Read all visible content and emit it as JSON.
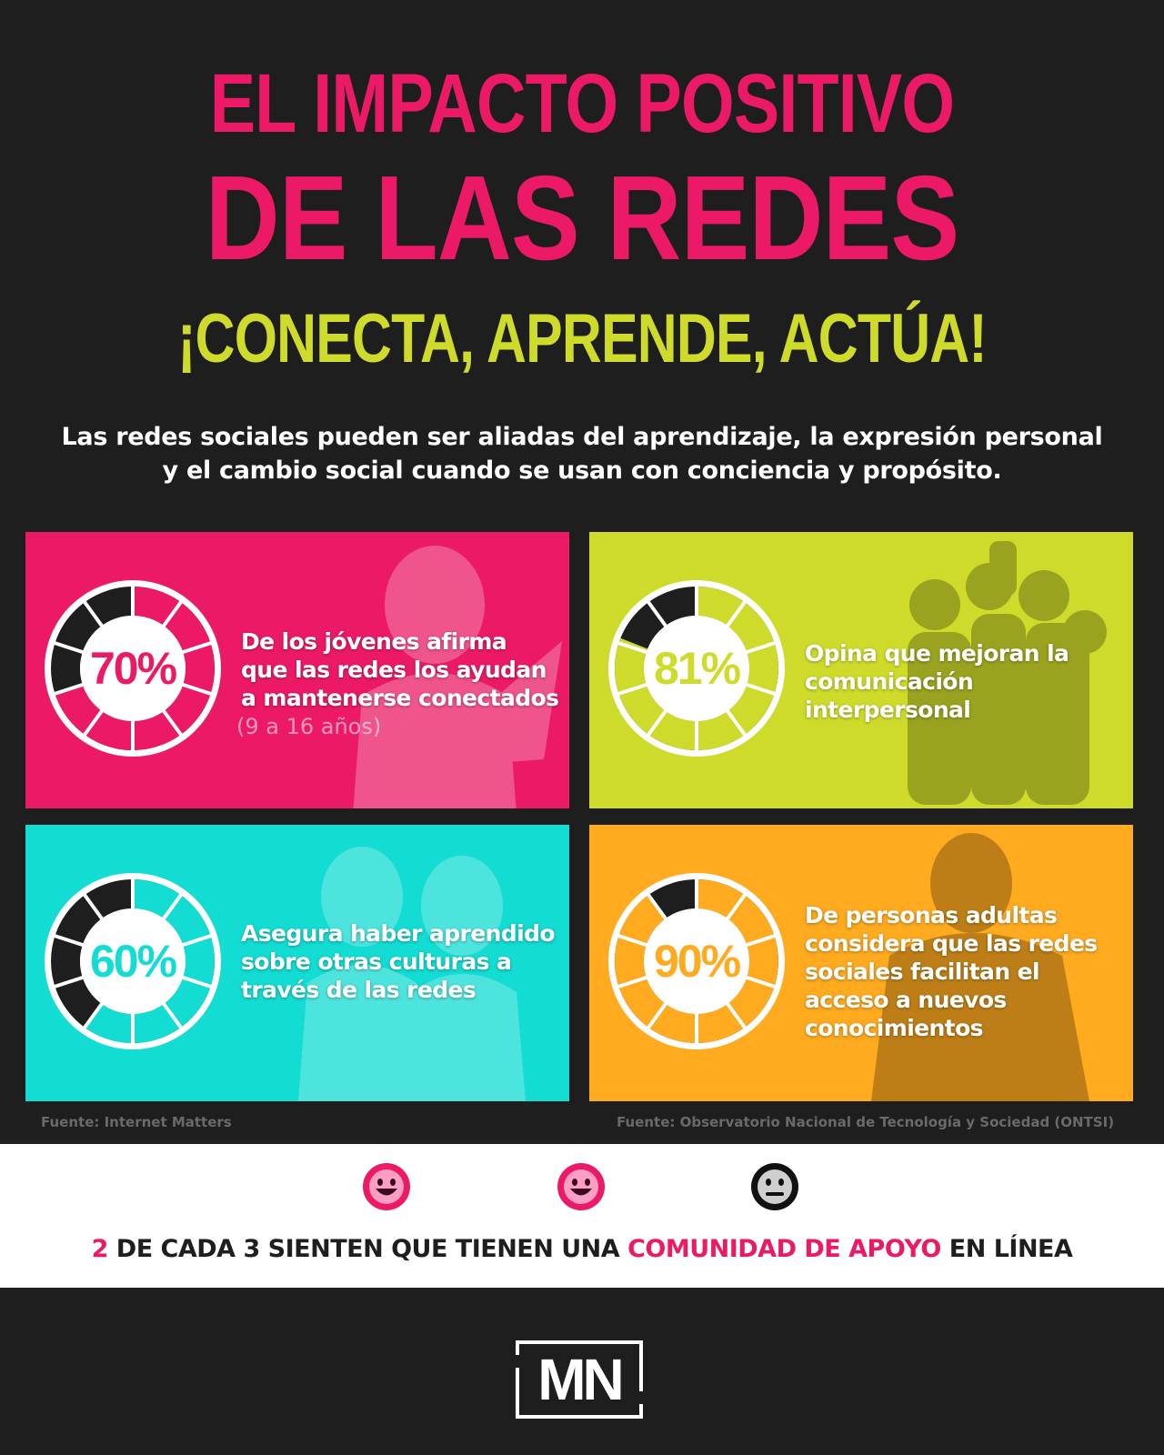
{
  "header": {
    "title_line1": "EL IMPACTO POSITIVO",
    "title_line2": "DE LAS REDES",
    "subtitle": "¡CONECTA, APRENDE, ACTÚA!"
  },
  "intro": "Las redes sociales pueden ser aliadas del aprendizaje, la expresión personal y el cambio social cuando se usan con conciencia y propósito.",
  "colors": {
    "background": "#1e1e1e",
    "pink": "#ec1a66",
    "lime": "#cfdb2a",
    "cyan": "#13dcd3",
    "orange": "#ffaa1f"
  },
  "cards": [
    {
      "percent_label": "70%",
      "value": 0.7,
      "text": "De los jóvenes afirma que las redes los ayudan a mantenerse conectados",
      "note": "(9 a 16 años)",
      "color": "#ec1a66",
      "photo_icon": "girl-with-laptop-photo"
    },
    {
      "percent_label": "81%",
      "value": 0.81,
      "text": "Opina que mejoran la comunicación interpersonal",
      "color": "#cfdb2a",
      "photo_icon": "group-high-five-photo"
    },
    {
      "percent_label": "60%",
      "value": 0.6,
      "text": "Asegura haber aprendido sobre otras culturas a través de las redes",
      "color": "#13dcd3",
      "photo_icon": "women-in-kimono-photo"
    },
    {
      "percent_label": "90%",
      "value": 0.9,
      "text": "De personas adultas considera que las redes sociales facilitan el acceso a nuevos conocimientos",
      "color": "#ffaa1f",
      "photo_icon": "man-with-violin-photo"
    }
  ],
  "sources": {
    "left": "Fuente: Internet Matters",
    "right": "Fuente: Observatorio Nacional de Tecnología y Sociedad (ONTSI)"
  },
  "banner": {
    "faces": [
      "happy-face-icon",
      "happy-face-icon",
      "neutral-face-icon"
    ],
    "num1": "2",
    "text1": " DE CADA ",
    "num2": "3",
    "text2": " SIENTEN QUE TIENEN UNA ",
    "highlight": "COMUNIDAD DE APOYO",
    "text3": " EN LÍNEA"
  },
  "logo": {
    "text": "MN"
  }
}
